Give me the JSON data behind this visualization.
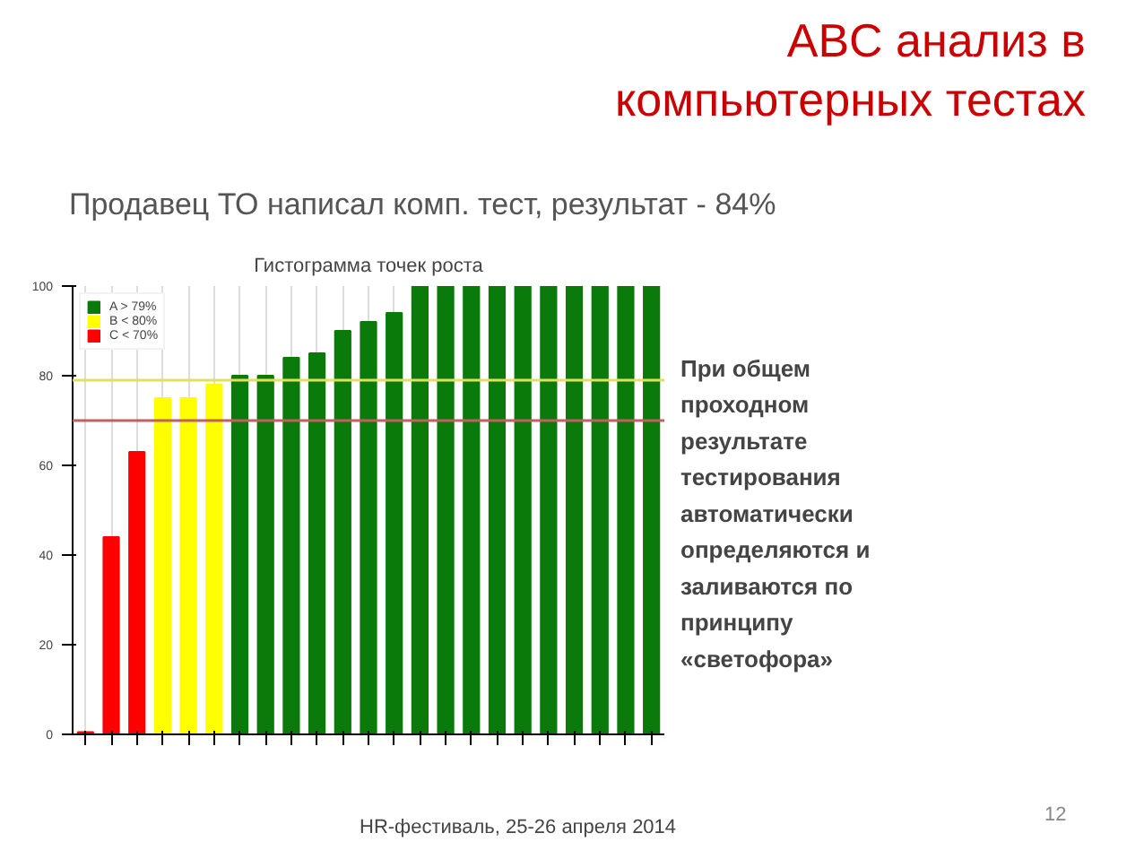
{
  "chart_data": {
    "type": "bar",
    "title": "Гистограмма точек роста",
    "categories": [
      null,
      null,
      null,
      null,
      null,
      null,
      null,
      null,
      null,
      null,
      null,
      null,
      null,
      null,
      null,
      null,
      null,
      null,
      null,
      null,
      null,
      null,
      null
    ],
    "series": [
      {
        "name": "A > 79%",
        "color": "#0a7a0a",
        "values": [
          null,
          null,
          null,
          null,
          null,
          null,
          80,
          80,
          84,
          85,
          90,
          92,
          94,
          100,
          100,
          100,
          100,
          100,
          100,
          100,
          100,
          100,
          100
        ]
      },
      {
        "name": "B < 80%",
        "color": "#ffff00",
        "values": [
          null,
          null,
          null,
          75,
          75,
          78,
          null,
          null,
          null,
          null,
          null,
          null,
          null,
          null,
          null,
          null,
          null,
          null,
          null,
          null,
          null,
          null,
          null
        ]
      },
      {
        "name": "C < 70%",
        "color": "#ff0000",
        "values": [
          0.5,
          44,
          63,
          null,
          null,
          null,
          null,
          null,
          null,
          null,
          null,
          null,
          null,
          null,
          null,
          null,
          null,
          null,
          null,
          null,
          null,
          null,
          null
        ]
      }
    ],
    "ylim": [
      0,
      100
    ],
    "yticks": [
      0,
      20,
      40,
      60,
      80,
      100
    ],
    "tick_labels": "y",
    "grid": "x",
    "legend": "top left",
    "ref_lines": [
      {
        "axis": "y",
        "value": 79,
        "color": "#e0e060"
      },
      {
        "axis": "y",
        "value": 70,
        "color": "#c06060"
      }
    ],
    "annotations": [
      "ABC анализ в компьютерных тестах",
      "Продавец ТО написал комп. тест, результат - 84%",
      "При общем проходном результате тестирования автоматически определяются и заливаются по принципу «светофора»",
      "HR-фестиваль, 25-26 апреля 2014",
      "12"
    ]
  }
}
